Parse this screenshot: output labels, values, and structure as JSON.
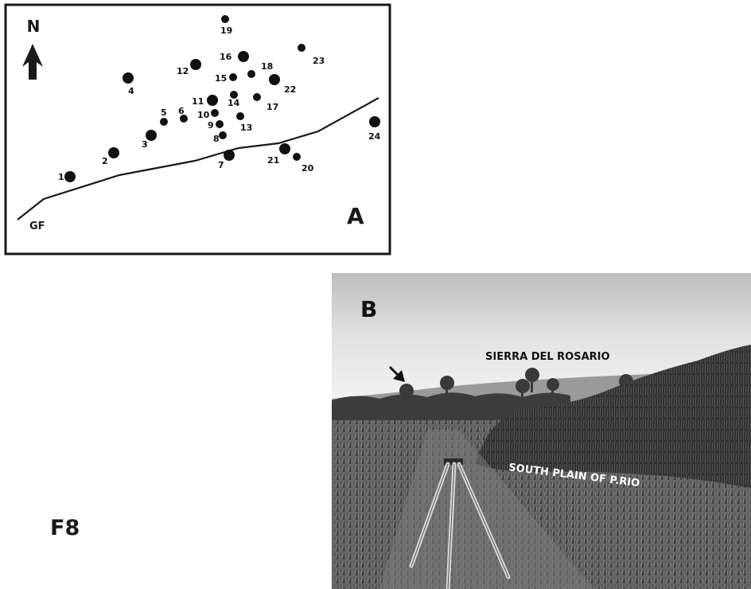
{
  "figure_label": "F8",
  "panel_a": {
    "panel_letter": "A",
    "north_label": "N",
    "fault_label": "GF",
    "points": [
      {
        "label": "1"
      },
      {
        "label": "2"
      },
      {
        "label": "3"
      },
      {
        "label": "4"
      },
      {
        "label": "5"
      },
      {
        "label": "6"
      },
      {
        "label": "7"
      },
      {
        "label": "8"
      },
      {
        "label": "9"
      },
      {
        "label": "10"
      },
      {
        "label": "11"
      },
      {
        "label": "12"
      },
      {
        "label": "13"
      },
      {
        "label": "14"
      },
      {
        "label": "15"
      },
      {
        "label": "16"
      },
      {
        "label": "17"
      },
      {
        "label": "18"
      },
      {
        "label": "19"
      },
      {
        "label": "20"
      },
      {
        "label": "21"
      },
      {
        "label": "22"
      },
      {
        "label": "23"
      },
      {
        "label": "24"
      }
    ]
  },
  "panel_b": {
    "panel_letter": "B",
    "mountain_label": "SIERRA DEL ROSARIO",
    "plain_label": "SOUTH PLAIN OF P.RIO"
  }
}
